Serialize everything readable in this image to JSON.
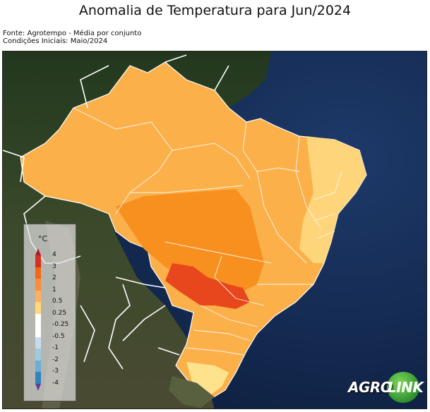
{
  "title": "Anomalia de Temperatura para Jun/2024",
  "source_line": "Fonte: Agrotempo - Média por conjunto",
  "init_line": "Condições Iniciais: Maio/2024",
  "legend": {
    "unit": "°C",
    "levels": [
      {
        "label": "4",
        "color": "#d7301f"
      },
      {
        "label": "3",
        "color": "#f16913"
      },
      {
        "label": "2",
        "color": "#fd8d3c"
      },
      {
        "label": "1",
        "color": "#fdae61"
      },
      {
        "label": "0.5",
        "color": "#fed976"
      },
      {
        "label": "0.25",
        "color": "#ffffff"
      },
      {
        "label": "-0.25",
        "color": "#ffffff"
      },
      {
        "label": "-0.5",
        "color": "#c6dbef"
      },
      {
        "label": "-1",
        "color": "#9ecae1"
      },
      {
        "label": "-2",
        "color": "#6baed6"
      },
      {
        "label": "-3",
        "color": "#3182bd"
      },
      {
        "label": "-4",
        "color": "#2c4fa8"
      }
    ],
    "overflow_high_color": "#b2182b",
    "overflow_low_color": "#5e3c99"
  },
  "logo": {
    "part1": "AGRO",
    "part2": "LINK"
  }
}
